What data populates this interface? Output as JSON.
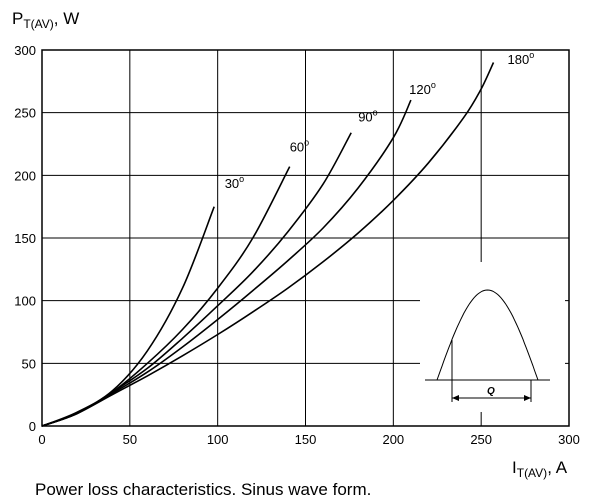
{
  "chart_data": {
    "type": "line",
    "ylabel": {
      "main": "P",
      "sub": "T(AV)",
      "unit": ", W"
    },
    "xlabel": {
      "main": "I",
      "sub": "T(AV)",
      "unit": ", A"
    },
    "caption": "Power loss characteristics. Sinus wave form.",
    "xlim": [
      0,
      300
    ],
    "ylim": [
      0,
      300
    ],
    "x_ticks": [
      "0",
      "50",
      "100",
      "150",
      "200",
      "250",
      "300"
    ],
    "y_ticks": [
      "0",
      "50",
      "100",
      "150",
      "200",
      "250",
      "300"
    ],
    "grid": true,
    "series": [
      {
        "name": "30°",
        "points": [
          [
            0,
            0
          ],
          [
            20,
            11
          ],
          [
            40,
            28
          ],
          [
            60,
            60
          ],
          [
            80,
            110
          ],
          [
            98,
            175
          ]
        ]
      },
      {
        "name": "60°",
        "points": [
          [
            0,
            0
          ],
          [
            20,
            10
          ],
          [
            40,
            27
          ],
          [
            60,
            50
          ],
          [
            80,
            77
          ],
          [
            100,
            110
          ],
          [
            120,
            150
          ],
          [
            141,
            207
          ]
        ]
      },
      {
        "name": "90°",
        "points": [
          [
            0,
            0
          ],
          [
            20,
            10
          ],
          [
            40,
            27
          ],
          [
            60,
            46
          ],
          [
            80,
            70
          ],
          [
            100,
            96
          ],
          [
            120,
            123
          ],
          [
            140,
            155
          ],
          [
            160,
            193
          ],
          [
            176,
            234
          ]
        ]
      },
      {
        "name": "120°",
        "points": [
          [
            0,
            0
          ],
          [
            20,
            10
          ],
          [
            40,
            26
          ],
          [
            60,
            43
          ],
          [
            80,
            63
          ],
          [
            100,
            85
          ],
          [
            120,
            108
          ],
          [
            140,
            132
          ],
          [
            160,
            158
          ],
          [
            180,
            190
          ],
          [
            200,
            230
          ],
          [
            210,
            260
          ]
        ]
      },
      {
        "name": "180°",
        "points": [
          [
            0,
            0
          ],
          [
            20,
            10
          ],
          [
            40,
            25
          ],
          [
            60,
            40
          ],
          [
            80,
            56
          ],
          [
            100,
            73
          ],
          [
            120,
            91
          ],
          [
            140,
            110
          ],
          [
            160,
            131
          ],
          [
            180,
            154
          ],
          [
            200,
            180
          ],
          [
            220,
            210
          ],
          [
            240,
            246
          ],
          [
            250,
            269
          ],
          [
            257,
            290
          ]
        ]
      }
    ],
    "labels": [
      {
        "text": "30",
        "sup": "o",
        "x": 104,
        "y": 190
      },
      {
        "text": "60",
        "sup": "o",
        "x": 141,
        "y": 219
      },
      {
        "text": "90",
        "sup": "o",
        "x": 180,
        "y": 243
      },
      {
        "text": "120",
        "sup": "o",
        "x": 209,
        "y": 265
      },
      {
        "text": "180",
        "sup": "o",
        "x": 265,
        "y": 289
      }
    ],
    "inset": {
      "label": "Q"
    }
  }
}
